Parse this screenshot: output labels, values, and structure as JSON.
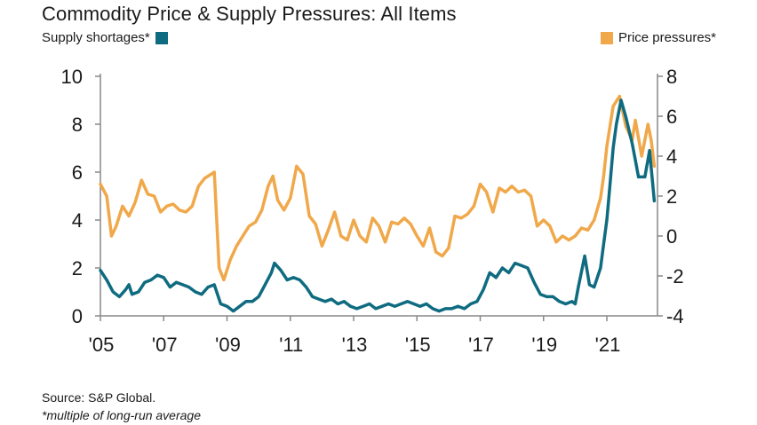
{
  "title": "Commodity Price & Supply Pressures: All Items",
  "legend": {
    "left_label": "Supply shortages*",
    "right_label": "Price pressures*"
  },
  "colors": {
    "supply": "#0f6b80",
    "price": "#f0a84a",
    "axis": "#888888"
  },
  "source": "Source: S&P Global.",
  "note": "*multiple of long-run average",
  "chart_data": {
    "type": "line",
    "title": "Commodity Price & Supply Pressures: All Items",
    "x_range": [
      2005.0,
      2022.6
    ],
    "x_ticks": [
      {
        "value": 2005,
        "label": "'05"
      },
      {
        "value": 2007,
        "label": "'07"
      },
      {
        "value": 2009,
        "label": "'09"
      },
      {
        "value": 2011,
        "label": "'11"
      },
      {
        "value": 2013,
        "label": "'13"
      },
      {
        "value": 2015,
        "label": "'15"
      },
      {
        "value": 2017,
        "label": "'17"
      },
      {
        "value": 2019,
        "label": "'19"
      },
      {
        "value": 2021,
        "label": "'21"
      }
    ],
    "y_left": {
      "range": [
        0,
        10
      ],
      "ticks": [
        "0",
        "2",
        "4",
        "6",
        "8",
        "10"
      ]
    },
    "y_right": {
      "range": [
        -4,
        8
      ],
      "ticks": [
        "-4",
        "-2",
        "0",
        "2",
        "4",
        "6",
        "8"
      ]
    },
    "series": [
      {
        "name": "Supply shortages*",
        "axis": "left",
        "points": [
          [
            2005.0,
            1.9
          ],
          [
            2005.2,
            1.5
          ],
          [
            2005.4,
            1.0
          ],
          [
            2005.6,
            0.8
          ],
          [
            2005.8,
            1.1
          ],
          [
            2005.9,
            1.3
          ],
          [
            2006.0,
            0.9
          ],
          [
            2006.2,
            1.0
          ],
          [
            2006.4,
            1.4
          ],
          [
            2006.6,
            1.5
          ],
          [
            2006.8,
            1.7
          ],
          [
            2007.0,
            1.6
          ],
          [
            2007.2,
            1.2
          ],
          [
            2007.4,
            1.4
          ],
          [
            2007.6,
            1.3
          ],
          [
            2007.8,
            1.2
          ],
          [
            2008.0,
            1.0
          ],
          [
            2008.2,
            0.9
          ],
          [
            2008.4,
            1.2
          ],
          [
            2008.6,
            1.3
          ],
          [
            2008.8,
            0.5
          ],
          [
            2009.0,
            0.4
          ],
          [
            2009.2,
            0.2
          ],
          [
            2009.4,
            0.4
          ],
          [
            2009.6,
            0.6
          ],
          [
            2009.8,
            0.6
          ],
          [
            2010.0,
            0.8
          ],
          [
            2010.2,
            1.3
          ],
          [
            2010.4,
            1.8
          ],
          [
            2010.5,
            2.2
          ],
          [
            2010.7,
            1.9
          ],
          [
            2010.9,
            1.5
          ],
          [
            2011.1,
            1.6
          ],
          [
            2011.3,
            1.5
          ],
          [
            2011.5,
            1.2
          ],
          [
            2011.7,
            0.8
          ],
          [
            2011.9,
            0.7
          ],
          [
            2012.1,
            0.6
          ],
          [
            2012.3,
            0.7
          ],
          [
            2012.5,
            0.5
          ],
          [
            2012.7,
            0.6
          ],
          [
            2012.9,
            0.4
          ],
          [
            2013.1,
            0.3
          ],
          [
            2013.3,
            0.4
          ],
          [
            2013.5,
            0.5
          ],
          [
            2013.7,
            0.3
          ],
          [
            2013.9,
            0.4
          ],
          [
            2014.1,
            0.5
          ],
          [
            2014.3,
            0.4
          ],
          [
            2014.5,
            0.5
          ],
          [
            2014.7,
            0.6
          ],
          [
            2014.9,
            0.5
          ],
          [
            2015.1,
            0.4
          ],
          [
            2015.3,
            0.5
          ],
          [
            2015.5,
            0.3
          ],
          [
            2015.7,
            0.2
          ],
          [
            2015.9,
            0.3
          ],
          [
            2016.1,
            0.3
          ],
          [
            2016.3,
            0.4
          ],
          [
            2016.5,
            0.3
          ],
          [
            2016.7,
            0.5
          ],
          [
            2016.9,
            0.6
          ],
          [
            2017.1,
            1.1
          ],
          [
            2017.3,
            1.8
          ],
          [
            2017.5,
            1.6
          ],
          [
            2017.7,
            2.0
          ],
          [
            2017.9,
            1.8
          ],
          [
            2018.1,
            2.2
          ],
          [
            2018.3,
            2.1
          ],
          [
            2018.5,
            2.0
          ],
          [
            2018.7,
            1.4
          ],
          [
            2018.9,
            0.9
          ],
          [
            2019.1,
            0.8
          ],
          [
            2019.3,
            0.8
          ],
          [
            2019.5,
            0.6
          ],
          [
            2019.7,
            0.5
          ],
          [
            2019.9,
            0.6
          ],
          [
            2020.0,
            0.5
          ],
          [
            2020.1,
            1.2
          ],
          [
            2020.3,
            2.5
          ],
          [
            2020.45,
            1.3
          ],
          [
            2020.6,
            1.2
          ],
          [
            2020.8,
            2.0
          ],
          [
            2020.9,
            3.0
          ],
          [
            2021.0,
            4.0
          ],
          [
            2021.1,
            5.5
          ],
          [
            2021.2,
            7.0
          ],
          [
            2021.3,
            8.0
          ],
          [
            2021.45,
            9.0
          ],
          [
            2021.6,
            8.3
          ],
          [
            2021.8,
            7.2
          ],
          [
            2021.9,
            6.5
          ],
          [
            2022.0,
            5.8
          ],
          [
            2022.2,
            5.8
          ],
          [
            2022.35,
            6.9
          ],
          [
            2022.5,
            4.8
          ]
        ]
      },
      {
        "name": "Price pressures*",
        "axis": "right",
        "points": [
          [
            2005.0,
            2.6
          ],
          [
            2005.2,
            2.0
          ],
          [
            2005.35,
            0.0
          ],
          [
            2005.5,
            0.5
          ],
          [
            2005.7,
            1.5
          ],
          [
            2005.9,
            1.0
          ],
          [
            2006.1,
            1.7
          ],
          [
            2006.3,
            2.8
          ],
          [
            2006.5,
            2.1
          ],
          [
            2006.7,
            2.0
          ],
          [
            2006.9,
            1.2
          ],
          [
            2007.1,
            1.5
          ],
          [
            2007.3,
            1.6
          ],
          [
            2007.5,
            1.3
          ],
          [
            2007.7,
            1.2
          ],
          [
            2007.9,
            1.5
          ],
          [
            2008.1,
            2.5
          ],
          [
            2008.3,
            2.9
          ],
          [
            2008.5,
            3.1
          ],
          [
            2008.6,
            3.2
          ],
          [
            2008.75,
            -1.6
          ],
          [
            2008.9,
            -2.2
          ],
          [
            2009.1,
            -1.2
          ],
          [
            2009.3,
            -0.5
          ],
          [
            2009.5,
            0.0
          ],
          [
            2009.7,
            0.5
          ],
          [
            2009.9,
            0.7
          ],
          [
            2010.1,
            1.3
          ],
          [
            2010.3,
            2.5
          ],
          [
            2010.45,
            3.0
          ],
          [
            2010.6,
            1.8
          ],
          [
            2010.8,
            1.3
          ],
          [
            2011.0,
            1.9
          ],
          [
            2011.2,
            3.5
          ],
          [
            2011.4,
            3.1
          ],
          [
            2011.6,
            1.0
          ],
          [
            2011.8,
            0.6
          ],
          [
            2012.0,
            -0.5
          ],
          [
            2012.2,
            0.3
          ],
          [
            2012.4,
            1.2
          ],
          [
            2012.6,
            0.0
          ],
          [
            2012.8,
            -0.2
          ],
          [
            2013.0,
            0.8
          ],
          [
            2013.2,
            0.0
          ],
          [
            2013.4,
            -0.3
          ],
          [
            2013.6,
            0.9
          ],
          [
            2013.8,
            0.5
          ],
          [
            2014.0,
            -0.3
          ],
          [
            2014.2,
            0.7
          ],
          [
            2014.4,
            0.6
          ],
          [
            2014.6,
            0.9
          ],
          [
            2014.8,
            0.6
          ],
          [
            2015.0,
            0.0
          ],
          [
            2015.2,
            -0.5
          ],
          [
            2015.4,
            0.4
          ],
          [
            2015.6,
            -0.8
          ],
          [
            2015.8,
            -1.0
          ],
          [
            2016.0,
            -0.6
          ],
          [
            2016.2,
            1.0
          ],
          [
            2016.4,
            0.9
          ],
          [
            2016.6,
            1.1
          ],
          [
            2016.8,
            1.5
          ],
          [
            2017.0,
            2.6
          ],
          [
            2017.2,
            2.2
          ],
          [
            2017.4,
            1.2
          ],
          [
            2017.6,
            2.4
          ],
          [
            2017.8,
            2.2
          ],
          [
            2018.0,
            2.5
          ],
          [
            2018.2,
            2.2
          ],
          [
            2018.4,
            2.3
          ],
          [
            2018.6,
            2.0
          ],
          [
            2018.8,
            0.5
          ],
          [
            2019.0,
            0.8
          ],
          [
            2019.2,
            0.5
          ],
          [
            2019.4,
            -0.3
          ],
          [
            2019.6,
            0.0
          ],
          [
            2019.8,
            -0.2
          ],
          [
            2020.0,
            0.0
          ],
          [
            2020.2,
            0.4
          ],
          [
            2020.4,
            0.3
          ],
          [
            2020.6,
            0.8
          ],
          [
            2020.8,
            1.9
          ],
          [
            2020.9,
            3.0
          ],
          [
            2021.0,
            4.5
          ],
          [
            2021.2,
            6.5
          ],
          [
            2021.4,
            7.0
          ],
          [
            2021.6,
            5.5
          ],
          [
            2021.8,
            4.8
          ],
          [
            2021.9,
            5.8
          ],
          [
            2022.1,
            4.0
          ],
          [
            2022.3,
            5.6
          ],
          [
            2022.4,
            4.8
          ],
          [
            2022.5,
            3.5
          ]
        ]
      }
    ]
  }
}
